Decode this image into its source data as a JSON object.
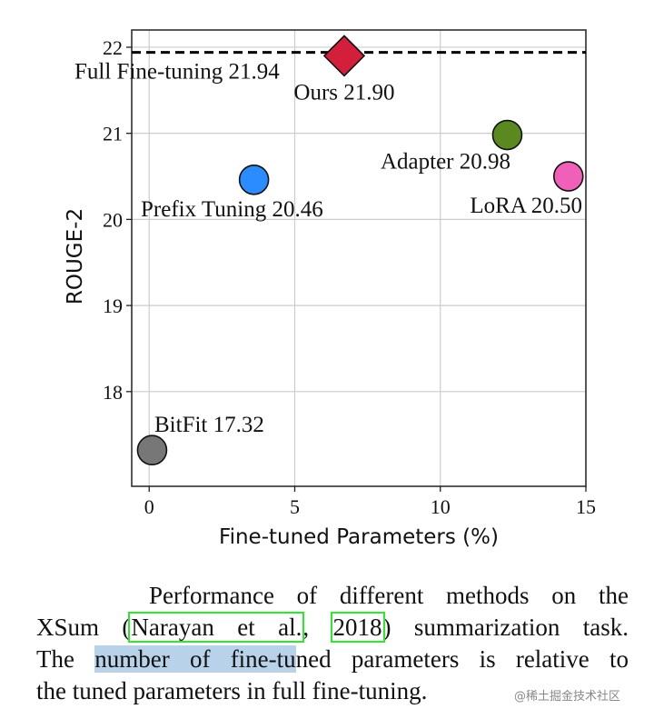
{
  "chart_data": {
    "type": "scatter",
    "title": "",
    "xlabel": "Fine-tuned Parameters (%)",
    "ylabel": "ROUGE-2",
    "xlim": [
      -0.6,
      15
    ],
    "ylim": [
      16.9,
      22.2
    ],
    "xticks": [
      0,
      5,
      10,
      15
    ],
    "yticks": [
      18,
      19,
      20,
      21,
      22
    ],
    "grid": true,
    "reference_line": {
      "label": "Full Fine-tuning 21.94",
      "y": 21.94,
      "style": "dashed",
      "color": "#000000"
    },
    "points": [
      {
        "label": "Ours 21.90",
        "x": 6.7,
        "y": 21.9,
        "marker": "diamond",
        "color": "#d41f3c"
      },
      {
        "label": "Adapter 20.98",
        "x": 12.3,
        "y": 20.98,
        "marker": "circle",
        "color": "#5a8a1f"
      },
      {
        "label": "Prefix Tuning 20.46",
        "x": 3.6,
        "y": 20.46,
        "marker": "circle",
        "color": "#2a8cff"
      },
      {
        "label": "LoRA 20.50",
        "x": 14.4,
        "y": 20.5,
        "marker": "circle",
        "color": "#f060b8"
      },
      {
        "label": "BitFit 17.32",
        "x": 0.1,
        "y": 17.32,
        "marker": "circle",
        "color": "#777777"
      }
    ]
  },
  "caption": {
    "line1": "Performance of different methods on the",
    "line2_pre": "XSum (",
    "cite_author": "Narayan et al.",
    "cite_sep": ", ",
    "cite_year": "2018",
    "line2_post": ") summarization task.",
    "line3_pre": "The ",
    "line3_highlight": "number of fine-tu",
    "line3_post": "ned parameters is relative to",
    "line4": "the tuned parameters in full fine-tuning."
  },
  "watermark": "@稀土掘金技术社区"
}
